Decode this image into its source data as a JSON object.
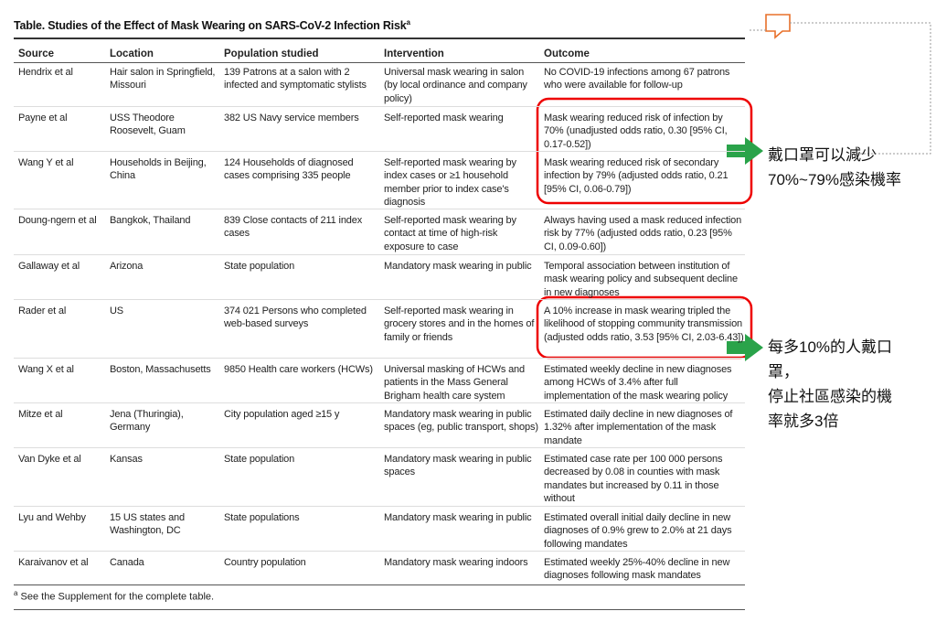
{
  "header": {
    "title": "Table. Studies of the Effect of Mask Wearing on SARS-CoV-2 Infection Risk",
    "title_note": "a"
  },
  "table": {
    "columns": [
      "Source",
      "Location",
      "Population studied",
      "Intervention",
      "Outcome"
    ],
    "rows": [
      [
        "Hendrix et al",
        "Hair salon in Springfield, Missouri",
        "139 Patrons at a salon with 2 infected and symptomatic stylists",
        "Universal mask wearing in salon (by local ordinance and company policy)",
        "No COVID-19 infections among 67 patrons who were available for follow-up"
      ],
      [
        "Payne et al",
        "USS Theodore Roosevelt, Guam",
        "382 US Navy service members",
        "Self-reported mask wearing",
        "Mask wearing reduced risk of infection by 70% (unadjusted odds ratio, 0.30 [95% CI, 0.17-0.52])"
      ],
      [
        "Wang Y et al",
        "Households in Beijing, China",
        "124 Households of diagnosed cases comprising 335 people",
        "Self-reported mask wearing by index cases or ≥1 household member prior to index case's diagnosis",
        "Mask wearing reduced risk of secondary infection by 79% (adjusted odds ratio, 0.21 [95% CI, 0.06-0.79])"
      ],
      [
        "Doung-ngern et al",
        "Bangkok, Thailand",
        "839 Close contacts of 211 index cases",
        "Self-reported mask wearing by contact at time of high-risk exposure to case",
        "Always having used a mask reduced infection risk by 77% (adjusted odds ratio, 0.23 [95% CI, 0.09-0.60])"
      ],
      [
        "Gallaway et al",
        "Arizona",
        "State population",
        "Mandatory mask wearing in public",
        "Temporal association between institution of mask wearing policy and subsequent decline in new diagnoses"
      ],
      [
        "Rader et al",
        "US",
        "374 021 Persons who completed web-based surveys",
        "Self-reported mask wearing in grocery stores and in the homes of family or friends",
        "A 10% increase in mask wearing tripled the likelihood of stopping community transmission (adjusted odds ratio, 3.53 [95% CI, 2.03-6.43])"
      ],
      [
        "Wang X et al",
        "Boston, Massachusetts",
        "9850 Health care workers (HCWs)",
        "Universal masking of HCWs and patients in the Mass General Brigham health care system",
        "Estimated weekly decline in new diagnoses among HCWs of 3.4% after full implementation of the mask wearing policy"
      ],
      [
        "Mitze et al",
        "Jena (Thuringia), Germany",
        "City population aged ≥15 y",
        "Mandatory mask wearing in public spaces (eg, public transport, shops)",
        "Estimated daily decline in new diagnoses of 1.32% after implementation of the mask mandate"
      ],
      [
        "Van Dyke et al",
        "Kansas",
        "State population",
        "Mandatory mask wearing in public spaces",
        "Estimated case rate per 100 000 persons decreased by 0.08 in counties with mask mandates but increased by 0.11 in those without"
      ],
      [
        "Lyu and Wehby",
        "15 US states and Washington, DC",
        "State populations",
        "Mandatory mask wearing in public",
        "Estimated overall initial daily decline in new diagnoses of 0.9% grew to 2.0% at 21 days following mandates"
      ],
      [
        "Karaivanov et al",
        "Canada",
        "Country population",
        "Mandatory mask wearing indoors",
        "Estimated weekly 25%-40% decline in new diagnoses following mask mandates"
      ]
    ]
  },
  "footnote": {
    "mark": "a",
    "text": "See the Supplement for the complete table."
  },
  "annotations": [
    {
      "lines": [
        "戴口罩可以減少",
        "70%~79%感染機率"
      ]
    },
    {
      "lines": [
        "每多10%的人戴口",
        "罩，",
        "停止社區感染的機",
        "率就多3倍"
      ]
    }
  ]
}
